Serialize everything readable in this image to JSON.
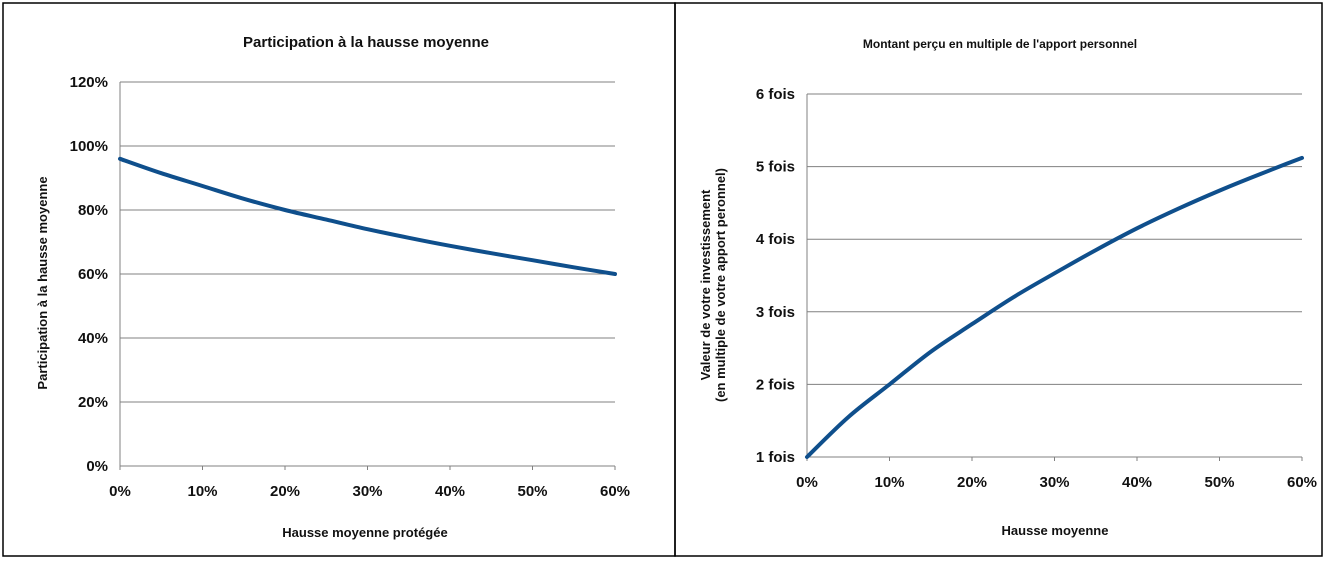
{
  "colors": {
    "series": "#0f4f8c",
    "grid": "#808080",
    "frame": "#000000"
  },
  "chart_data": [
    {
      "type": "line",
      "title": "Participation à la hausse moyenne",
      "xlabel": "Hausse moyenne protégée",
      "ylabel": "Participation à la hausse moyenne",
      "x_ticks": [
        "0%",
        "10%",
        "20%",
        "30%",
        "40%",
        "50%",
        "60%"
      ],
      "y_ticks": [
        "0%",
        "20%",
        "40%",
        "60%",
        "80%",
        "100%",
        "120%"
      ],
      "xlim": [
        0,
        60
      ],
      "ylim": [
        0,
        120
      ],
      "grid": true,
      "series": [
        {
          "x": [
            0,
            5,
            10,
            15,
            20,
            25,
            30,
            35,
            40,
            45,
            50,
            55,
            60
          ],
          "y": [
            96,
            91.5,
            87.5,
            83.5,
            80,
            77,
            74,
            71.3,
            68.8,
            66.5,
            64.3,
            62.1,
            60
          ]
        }
      ]
    },
    {
      "type": "line",
      "title": "Montant perçu en multiple de l'apport personnel",
      "xlabel": "Hausse moyenne",
      "ylabel": [
        "Valeur de votre investissement",
        "(en multiple de votre apport peronnel)"
      ],
      "x_ticks": [
        "0%",
        "10%",
        "20%",
        "30%",
        "40%",
        "50%",
        "60%"
      ],
      "y_ticks": [
        "1 fois",
        "2 fois",
        "3 fois",
        "4 fois",
        "5 fois",
        "6 fois"
      ],
      "xlim": [
        0,
        60
      ],
      "ylim": [
        1,
        6
      ],
      "grid": true,
      "series": [
        {
          "x": [
            0,
            5,
            10,
            15,
            20,
            25,
            30,
            35,
            40,
            45,
            50,
            55,
            60
          ],
          "y": [
            1.0,
            1.55,
            2.0,
            2.45,
            2.83,
            3.2,
            3.53,
            3.85,
            4.15,
            4.42,
            4.67,
            4.9,
            5.12
          ]
        }
      ]
    }
  ]
}
